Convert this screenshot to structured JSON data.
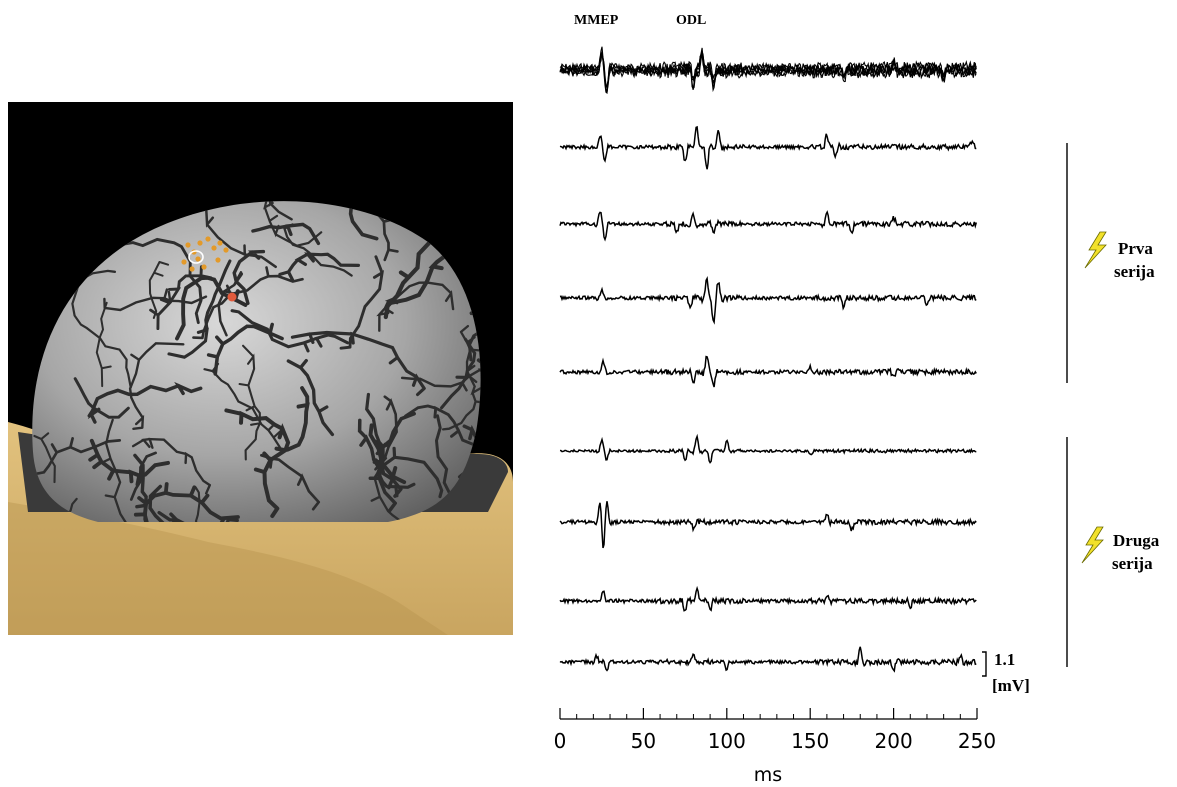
{
  "figure": {
    "peak_labels": [
      "MMEP",
      "ODL"
    ],
    "series_groups": [
      {
        "label_line1": "Prva",
        "label_line2": "serija"
      },
      {
        "label_line1": "Druga",
        "label_line2": "serija"
      }
    ],
    "scale_bar": {
      "value": "1.1",
      "unit": "[mV]"
    },
    "time_axis": {
      "label": "ms",
      "ticks": [
        "0",
        "50",
        "100",
        "150",
        "200",
        "250"
      ],
      "range": [
        0,
        250
      ]
    },
    "trace_count": 9,
    "colors": {
      "brain_bg": "#000000",
      "head": "#d9b872",
      "cortex": "#a9a9a9",
      "sulci": "#2b2b2b",
      "markers": "#e39a2a",
      "stim_dot": "#e25b3c",
      "lightning": "#f2e12a",
      "trace": "#000000"
    }
  }
}
